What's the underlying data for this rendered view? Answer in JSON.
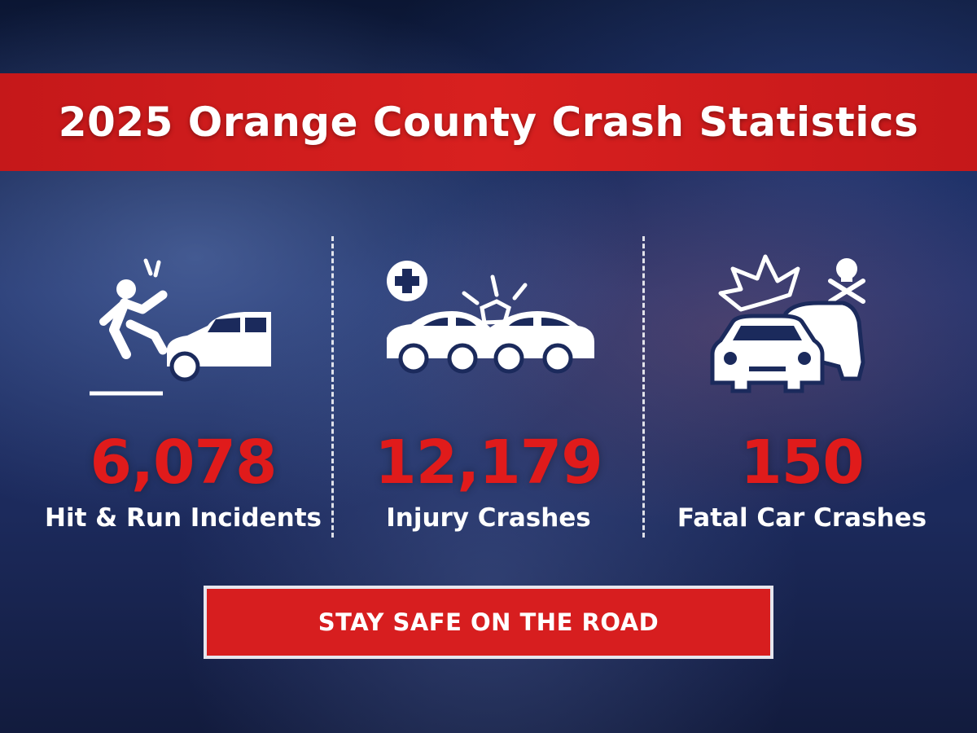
{
  "header": {
    "title": "2025 Orange County Crash Statistics"
  },
  "stats": [
    {
      "value": "6,078",
      "label": "Hit & Run Incidents"
    },
    {
      "value": "12,179",
      "label": "Injury Crashes"
    },
    {
      "value": "150",
      "label": "Fatal Car Crashes"
    }
  ],
  "footer": {
    "text": "STAY SAFE ON THE ROAD"
  }
}
